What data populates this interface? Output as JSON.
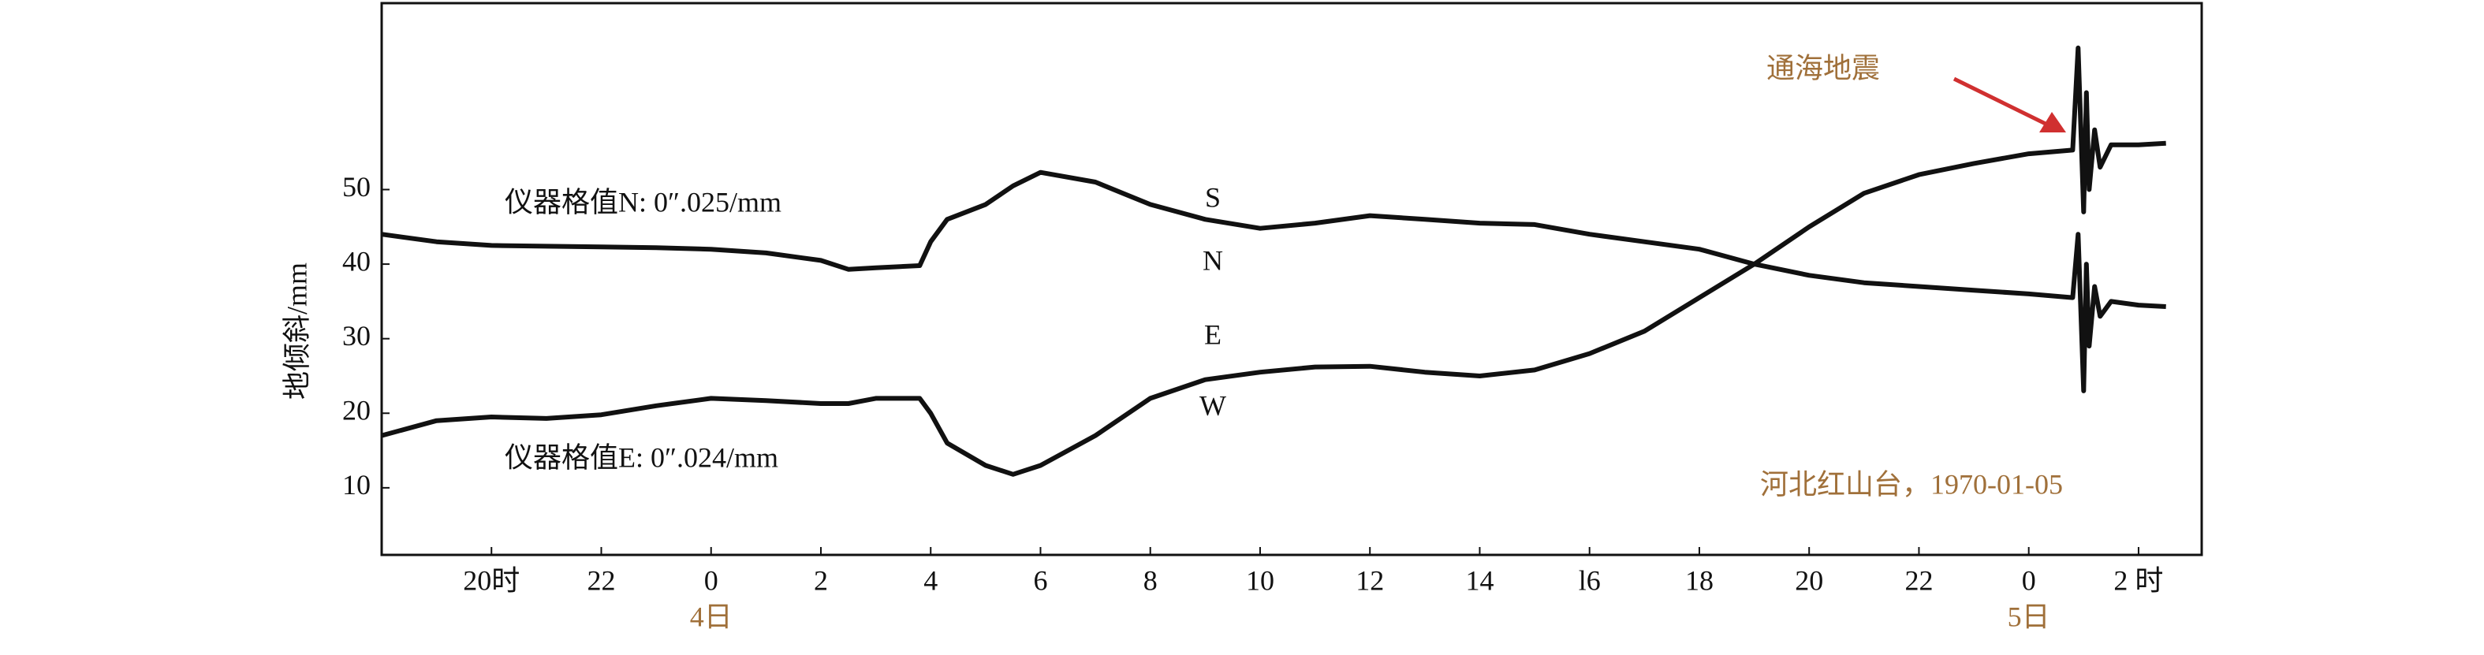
{
  "chart_data": {
    "type": "line",
    "y_label": "地倾斜/mm",
    "x": [
      -6,
      -5,
      -4,
      -3,
      -2,
      -1,
      0,
      1,
      2,
      2.5,
      3,
      3.8,
      4,
      4.3,
      5,
      5.5,
      6,
      7,
      8,
      9,
      10,
      11,
      12,
      13,
      14,
      15,
      16,
      17,
      18,
      19,
      20,
      21,
      22,
      23,
      24,
      24.8,
      24.9,
      25.0,
      25.05,
      25.1,
      25.2,
      25.3,
      25.5,
      26,
      26.5
    ],
    "series": [
      {
        "color": "#111111",
        "values": [
          44,
          43,
          42.5,
          42.4,
          42.3,
          42.2,
          42,
          41.5,
          40.5,
          39.3,
          39.5,
          39.8,
          43,
          46,
          48,
          50.5,
          52.3,
          51,
          48,
          46,
          44.8,
          45.5,
          46.5,
          46,
          45.5,
          45.3,
          44,
          43,
          42,
          40,
          38.5,
          37.5,
          37,
          36.5,
          36,
          35.5,
          44,
          23,
          40,
          29,
          37,
          33,
          35,
          34.5,
          34.3
        ]
      },
      {
        "color": "#111111",
        "values": [
          17,
          19,
          19.5,
          19.3,
          19.8,
          21,
          22,
          21.7,
          21.3,
          21.3,
          22,
          22,
          20,
          16,
          13,
          11.8,
          13,
          17,
          22,
          24.5,
          25.5,
          26.2,
          26.3,
          25.5,
          25,
          25.8,
          28,
          31,
          35.5,
          40,
          45,
          49.5,
          52,
          53.5,
          54.8,
          55.3,
          69,
          47,
          63,
          50,
          58,
          53,
          56,
          56,
          56.2
        ]
      }
    ],
    "xlim": [
      -6,
      27.15
    ],
    "ylim": [
      1,
      75
    ],
    "yticks": [
      10,
      20,
      30,
      40,
      50
    ],
    "xticks": [
      {
        "value": -4,
        "label": "20时"
      },
      {
        "value": -2,
        "label": "22"
      },
      0,
      2,
      4,
      6,
      8,
      10,
      12,
      14,
      {
        "value": 16,
        "label": "l6"
      },
      18,
      {
        "value": 20,
        "label": "20"
      },
      {
        "value": 22,
        "label": "22"
      },
      {
        "value": 24,
        "label": "0"
      },
      {
        "value": 26,
        "label": "2 时"
      }
    ],
    "day_labels": [
      {
        "value": 0,
        "label": "4日"
      },
      {
        "value": 24,
        "label": "5日"
      }
    ],
    "annotations": {
      "scale_n": "仪器格值N: 0″.025/mm",
      "scale_e": "仪器格值E: 0″.024/mm",
      "s": "S",
      "n": "N",
      "e": "E",
      "w": "W",
      "quake": "通海地震",
      "station": "河北红山台，1970-01-05"
    },
    "arrow_color": "#d03030"
  }
}
